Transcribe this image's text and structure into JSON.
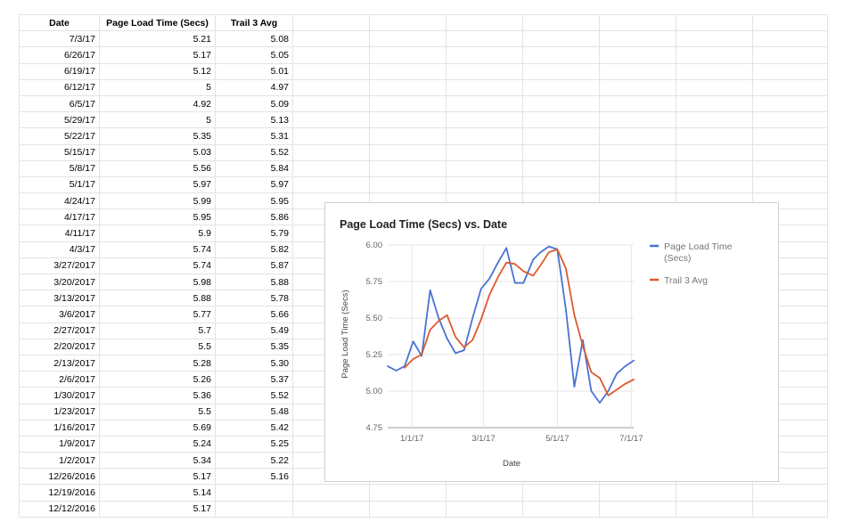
{
  "sheet": {
    "headers": [
      "Date",
      "Page Load Time (Secs)",
      "Trail 3 Avg"
    ],
    "rows": [
      [
        "7/3/17",
        "5.21",
        "5.08"
      ],
      [
        "6/26/17",
        "5.17",
        "5.05"
      ],
      [
        "6/19/17",
        "5.12",
        "5.01"
      ],
      [
        "6/12/17",
        "5",
        "4.97"
      ],
      [
        "6/5/17",
        "4.92",
        "5.09"
      ],
      [
        "5/29/17",
        "5",
        "5.13"
      ],
      [
        "5/22/17",
        "5.35",
        "5.31"
      ],
      [
        "5/15/17",
        "5.03",
        "5.52"
      ],
      [
        "5/8/17",
        "5.56",
        "5.84"
      ],
      [
        "5/1/17",
        "5.97",
        "5.97"
      ],
      [
        "4/24/17",
        "5.99",
        "5.95"
      ],
      [
        "4/17/17",
        "5.95",
        "5.86"
      ],
      [
        "4/11/17",
        "5.9",
        "5.79"
      ],
      [
        "4/3/17",
        "5.74",
        "5.82"
      ],
      [
        "3/27/2017",
        "5.74",
        "5.87"
      ],
      [
        "3/20/2017",
        "5.98",
        "5.88"
      ],
      [
        "3/13/2017",
        "5.88",
        "5.78"
      ],
      [
        "3/6/2017",
        "5.77",
        "5.66"
      ],
      [
        "2/27/2017",
        "5.7",
        "5.49"
      ],
      [
        "2/20/2017",
        "5.5",
        "5.35"
      ],
      [
        "2/13/2017",
        "5.28",
        "5.30"
      ],
      [
        "2/6/2017",
        "5.26",
        "5.37"
      ],
      [
        "1/30/2017",
        "5.36",
        "5.52"
      ],
      [
        "1/23/2017",
        "5.5",
        "5.48"
      ],
      [
        "1/16/2017",
        "5.69",
        "5.42"
      ],
      [
        "1/9/2017",
        "5.24",
        "5.25"
      ],
      [
        "1/2/2017",
        "5.34",
        "5.22"
      ],
      [
        "12/26/2016",
        "5.17",
        "5.16"
      ],
      [
        "12/19/2016",
        "5.14",
        ""
      ],
      [
        "12/12/2016",
        "5.17",
        ""
      ]
    ]
  },
  "chart_data": {
    "type": "line",
    "title": "Page Load Time (Secs) vs. Date",
    "xlabel": "Date",
    "ylabel": "Page Load Time (Secs)",
    "ylim": [
      4.75,
      6.0
    ],
    "yticks": [
      "4.75",
      "5.00",
      "5.25",
      "5.50",
      "5.75",
      "6.00"
    ],
    "xticks": [
      {
        "date": "2017-01-01",
        "label": "1/1/17"
      },
      {
        "date": "2017-03-01",
        "label": "3/1/17"
      },
      {
        "date": "2017-05-01",
        "label": "5/1/17"
      },
      {
        "date": "2017-07-01",
        "label": "7/1/17"
      }
    ],
    "xlim": [
      "2016-12-12",
      "2017-07-03"
    ],
    "legend_position": "right",
    "grid": true,
    "x": [
      "2016-12-12",
      "2016-12-19",
      "2016-12-26",
      "2017-01-02",
      "2017-01-09",
      "2017-01-16",
      "2017-01-23",
      "2017-01-30",
      "2017-02-06",
      "2017-02-13",
      "2017-02-20",
      "2017-02-27",
      "2017-03-06",
      "2017-03-13",
      "2017-03-20",
      "2017-03-27",
      "2017-04-03",
      "2017-04-11",
      "2017-04-17",
      "2017-04-24",
      "2017-05-01",
      "2017-05-08",
      "2017-05-15",
      "2017-05-22",
      "2017-05-29",
      "2017-06-05",
      "2017-06-12",
      "2017-06-19",
      "2017-06-26",
      "2017-07-03"
    ],
    "series": [
      {
        "name": "Page Load Time (Secs)",
        "legend_lines": [
          "Page Load Time",
          "(Secs)"
        ],
        "color": "#4a72d4",
        "values": [
          5.17,
          5.14,
          5.17,
          5.34,
          5.24,
          5.69,
          5.5,
          5.36,
          5.26,
          5.28,
          5.5,
          5.7,
          5.77,
          5.88,
          5.98,
          5.74,
          5.74,
          5.9,
          5.95,
          5.99,
          5.97,
          5.56,
          5.03,
          5.35,
          5.0,
          4.92,
          5.0,
          5.12,
          5.17,
          5.21
        ]
      },
      {
        "name": "Trail 3 Avg",
        "legend_lines": [
          "Trail 3 Avg"
        ],
        "color": "#dc5a2e",
        "values": [
          null,
          null,
          5.16,
          5.22,
          5.25,
          5.42,
          5.48,
          5.52,
          5.37,
          5.3,
          5.35,
          5.49,
          5.66,
          5.78,
          5.88,
          5.87,
          5.82,
          5.79,
          5.86,
          5.95,
          5.97,
          5.84,
          5.52,
          5.31,
          5.13,
          5.09,
          4.97,
          5.01,
          5.05,
          5.08
        ]
      }
    ]
  }
}
